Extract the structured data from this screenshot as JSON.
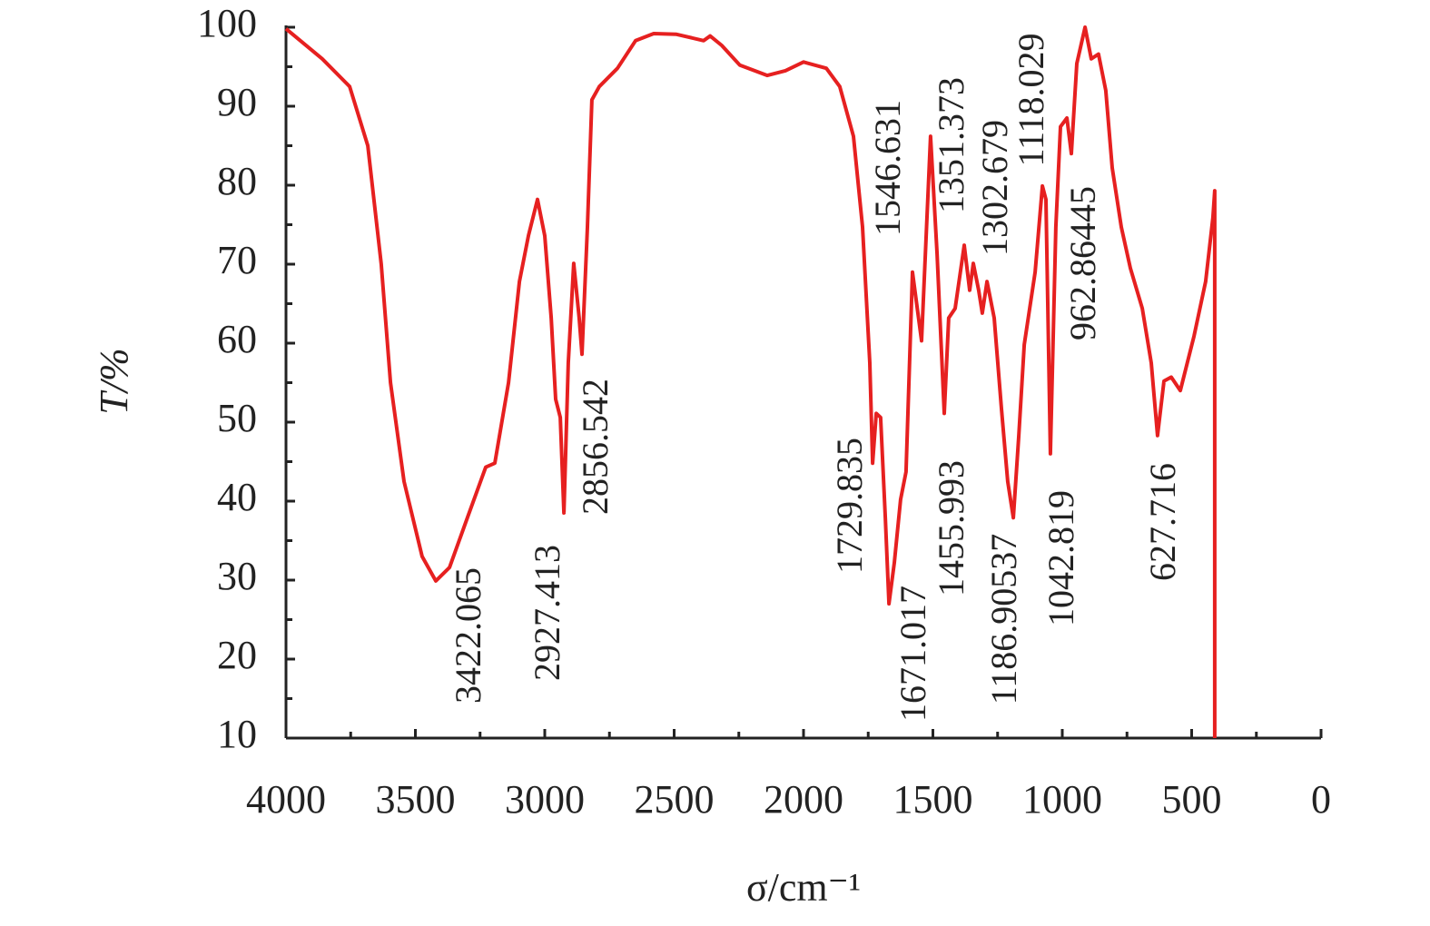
{
  "chart_data": {
    "type": "line",
    "xlabel": "σ/cm⁻¹",
    "ylabel": "T/%",
    "x": [
      4000,
      3860,
      3754,
      3684,
      3632,
      3596,
      3544,
      3474,
      3421,
      3368,
      3298,
      3228,
      3193,
      3140,
      3098,
      3063,
      3028,
      3000,
      2975,
      2958,
      2940,
      2926,
      2909,
      2888,
      2867,
      2856,
      2835,
      2818,
      2789,
      2719,
      2649,
      2579,
      2491,
      2386,
      2361,
      2316,
      2246,
      2140,
      2070,
      2000,
      1912,
      1860,
      1807,
      1772,
      1744,
      1733,
      1719,
      1702,
      1684,
      1670,
      1649,
      1625,
      1604,
      1579,
      1544,
      1509,
      1484,
      1456,
      1439,
      1414,
      1379,
      1358,
      1344,
      1323,
      1309,
      1291,
      1263,
      1235,
      1211,
      1189,
      1168,
      1147,
      1126,
      1105,
      1077,
      1063,
      1046,
      1025,
      1007,
      982,
      965,
      944,
      912,
      888,
      860,
      832,
      807,
      772,
      737,
      691,
      656,
      632,
      607,
      579,
      544,
      491,
      446,
      418,
      411,
      411
    ],
    "values": [
      99.8,
      96,
      92.5,
      85,
      70,
      55,
      42.5,
      33,
      29.9,
      31.6,
      38,
      44.3,
      44.8,
      55,
      67.8,
      73.6,
      78.2,
      73.6,
      63.2,
      52.9,
      50.6,
      38.5,
      57.5,
      70.1,
      63.2,
      58.6,
      74.7,
      90.8,
      92.5,
      94.8,
      98.3,
      99.2,
      99.1,
      98.3,
      98.9,
      97.7,
      95.2,
      93.9,
      94.5,
      95.6,
      94.8,
      92.5,
      86.2,
      74.7,
      57.5,
      44.8,
      51.1,
      50.6,
      37.9,
      27,
      32.2,
      40.2,
      43.7,
      69,
      60.3,
      86.2,
      71.3,
      51.1,
      63.2,
      64.4,
      72.4,
      66.7,
      70.1,
      66.7,
      63.8,
      67.8,
      63.2,
      51.7,
      42.5,
      37.9,
      48.3,
      59.8,
      64.4,
      69,
      79.9,
      78.2,
      46,
      74.7,
      87.4,
      88.5,
      84,
      95.4,
      100,
      96,
      96.6,
      92,
      82.2,
      74.7,
      69.5,
      64.4,
      57.5,
      48.3,
      55.2,
      55.7,
      54,
      60.9,
      67.8,
      75.9,
      79.3,
      10
    ],
    "color": "#e62020",
    "xlim": [
      4000,
      0
    ],
    "xticks": [
      4000,
      3500,
      3000,
      2500,
      2000,
      1500,
      1000,
      500,
      0
    ],
    "ylim": [
      10,
      100
    ],
    "yticks": [
      10,
      20,
      30,
      40,
      50,
      60,
      70,
      80,
      90,
      100
    ],
    "annotations": [
      "3422.065",
      "2927.413",
      "2856.542",
      "1729.835",
      "1671.017",
      "1546.631",
      "1455.993",
      "1351.373",
      "1302.679",
      "1186.90537",
      "1118.029",
      "1042.819",
      "962.86445",
      "627.716"
    ]
  }
}
